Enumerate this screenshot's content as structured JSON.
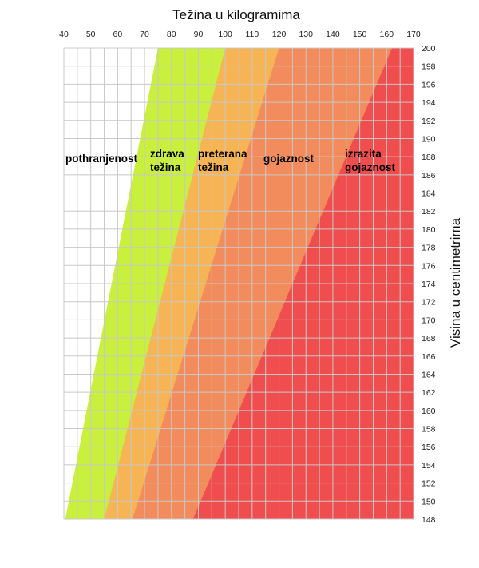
{
  "chart_data": {
    "type": "area",
    "title": "",
    "xlabel": "Težina u kilogramima",
    "ylabel": "Visina u centimetrima",
    "x_axis_position": "top",
    "y_axis_position": "right",
    "xlim": [
      40,
      170
    ],
    "ylim": [
      148,
      200
    ],
    "x_ticks": [
      40,
      50,
      60,
      70,
      80,
      90,
      100,
      110,
      120,
      130,
      140,
      150,
      160,
      170
    ],
    "y_ticks": [
      148,
      150,
      152,
      154,
      156,
      158,
      160,
      162,
      164,
      166,
      168,
      170,
      172,
      174,
      176,
      178,
      180,
      182,
      184,
      186,
      188,
      190,
      192,
      194,
      196,
      198,
      200
    ],
    "grid": true,
    "zones": [
      {
        "name": "pothranjenost",
        "label_lines": [
          "pothranjenost"
        ],
        "color": "#ffffff",
        "lower_boundary": null
      },
      {
        "name": "zdrava težina",
        "label_lines": [
          "zdrava",
          "težina"
        ],
        "color": "#c8f03c",
        "lower_boundary": [
          [
            40.5,
            148
          ],
          [
            75,
            200
          ]
        ]
      },
      {
        "name": "preterana težina",
        "label_lines": [
          "preterana",
          "težina"
        ],
        "color": "#f6b454",
        "lower_boundary": [
          [
            55,
            148
          ],
          [
            100,
            200
          ]
        ]
      },
      {
        "name": "gojaznost",
        "label_lines": [
          "gojaznost"
        ],
        "color": "#f28c5c",
        "lower_boundary": [
          [
            65.5,
            148
          ],
          [
            120,
            200
          ]
        ]
      },
      {
        "name": "izrazita gojaznost",
        "label_lines": [
          "izrazita",
          "gojaznost"
        ],
        "color": "#f04e4e",
        "lower_boundary": [
          [
            88,
            148
          ],
          [
            162,
            200
          ]
        ]
      }
    ]
  }
}
